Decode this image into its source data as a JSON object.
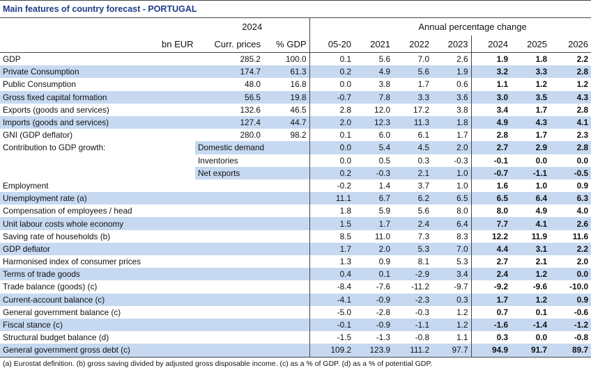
{
  "title": "Main features of country forecast - PORTUGAL",
  "header": {
    "year": "2024",
    "annual_change": "Annual percentage change",
    "col_bn_eur": "bn EUR",
    "col_curr_prices": "Curr. prices",
    "col_pct_gdp": "% GDP",
    "years": [
      "05-20",
      "2021",
      "2022",
      "2023",
      "2024",
      "2025",
      "2026"
    ]
  },
  "rows": [
    {
      "label": "GDP",
      "sub": "",
      "curr": "285.2",
      "pct": "100.0",
      "v": [
        "0.1",
        "5.6",
        "7.0",
        "2.6",
        "1.9",
        "1.8",
        "2.2"
      ],
      "shaded": false
    },
    {
      "label": "Private Consumption",
      "sub": "",
      "curr": "174.7",
      "pct": "61.3",
      "v": [
        "0.2",
        "4.9",
        "5.6",
        "1.9",
        "3.2",
        "3.3",
        "2.8"
      ],
      "shaded": true
    },
    {
      "label": "Public Consumption",
      "sub": "",
      "curr": "48.0",
      "pct": "16.8",
      "v": [
        "0.0",
        "3.8",
        "1.7",
        "0.6",
        "1.1",
        "1.2",
        "1.2"
      ],
      "shaded": false
    },
    {
      "label": "Gross fixed capital formation",
      "sub": "",
      "curr": "56.5",
      "pct": "19.8",
      "v": [
        "-0.7",
        "7.8",
        "3.3",
        "3.6",
        "3.0",
        "3.5",
        "4.3"
      ],
      "shaded": true
    },
    {
      "label": "Exports (goods and services)",
      "sub": "",
      "curr": "132.6",
      "pct": "46.5",
      "v": [
        "2.8",
        "12.0",
        "17.2",
        "3.8",
        "3.4",
        "1.7",
        "2.8"
      ],
      "shaded": false
    },
    {
      "label": "Imports (goods and services)",
      "sub": "",
      "curr": "127.4",
      "pct": "44.7",
      "v": [
        "2.0",
        "12.3",
        "11.3",
        "1.8",
        "4.9",
        "4.3",
        "4.1"
      ],
      "shaded": true
    },
    {
      "label": "GNI (GDP deflator)",
      "sub": "",
      "curr": "280.0",
      "pct": "98.2",
      "v": [
        "0.1",
        "6.0",
        "6.1",
        "1.7",
        "2.8",
        "1.7",
        "2.3"
      ],
      "shaded": false
    },
    {
      "label": "Contribution to GDP growth:",
      "sub": "Domestic demand",
      "curr": "",
      "pct": "",
      "v": [
        "0.0",
        "5.4",
        "4.5",
        "2.0",
        "2.7",
        "2.9",
        "2.8"
      ],
      "shaded": true
    },
    {
      "label": "",
      "sub": "Inventories",
      "curr": "",
      "pct": "",
      "v": [
        "0.0",
        "0.5",
        "0.3",
        "-0.3",
        "-0.1",
        "0.0",
        "0.0"
      ],
      "shaded": false
    },
    {
      "label": "",
      "sub": "Net exports",
      "curr": "",
      "pct": "",
      "v": [
        "0.2",
        "-0.3",
        "2.1",
        "1.0",
        "-0.7",
        "-1.1",
        "-0.5"
      ],
      "shaded": true
    },
    {
      "label": "Employment",
      "sub": "",
      "curr": "",
      "pct": "",
      "v": [
        "-0.2",
        "1.4",
        "3.7",
        "1.0",
        "1.6",
        "1.0",
        "0.9"
      ],
      "shaded": false
    },
    {
      "label": "Unemployment rate (a)",
      "sub": "",
      "curr": "",
      "pct": "",
      "v": [
        "11.1",
        "6.7",
        "6.2",
        "6.5",
        "6.5",
        "6.4",
        "6.3"
      ],
      "shaded": true
    },
    {
      "label": "Compensation of employees / head",
      "sub": "",
      "curr": "",
      "pct": "",
      "v": [
        "1.8",
        "5.9",
        "5.6",
        "8.0",
        "8.0",
        "4.9",
        "4.0"
      ],
      "shaded": false
    },
    {
      "label": "Unit labour costs whole economy",
      "sub": "",
      "curr": "",
      "pct": "",
      "v": [
        "1.5",
        "1.7",
        "2.4",
        "6.4",
        "7.7",
        "4.1",
        "2.6"
      ],
      "shaded": true
    },
    {
      "label": "Saving rate of households (b)",
      "sub": "",
      "curr": "",
      "pct": "",
      "v": [
        "8.5",
        "11.0",
        "7.3",
        "8.3",
        "12.2",
        "11.9",
        "11.6"
      ],
      "shaded": false
    },
    {
      "label": "GDP deflator",
      "sub": "",
      "curr": "",
      "pct": "",
      "v": [
        "1.7",
        "2.0",
        "5.3",
        "7.0",
        "4.4",
        "3.1",
        "2.2"
      ],
      "shaded": true
    },
    {
      "label": "Harmonised index of consumer prices",
      "sub": "",
      "curr": "",
      "pct": "",
      "v": [
        "1.3",
        "0.9",
        "8.1",
        "5.3",
        "2.7",
        "2.1",
        "2.0"
      ],
      "shaded": false
    },
    {
      "label": "Terms of trade goods",
      "sub": "",
      "curr": "",
      "pct": "",
      "v": [
        "0.4",
        "0.1",
        "-2.9",
        "3.4",
        "2.4",
        "1.2",
        "0.0"
      ],
      "shaded": true
    },
    {
      "label": "Trade balance (goods) (c)",
      "sub": "",
      "curr": "",
      "pct": "",
      "v": [
        "-8.4",
        "-7.6",
        "-11.2",
        "-9.7",
        "-9.2",
        "-9.6",
        "-10.0"
      ],
      "shaded": false
    },
    {
      "label": "Current-account balance (c)",
      "sub": "",
      "curr": "",
      "pct": "",
      "v": [
        "-4.1",
        "-0.9",
        "-2.3",
        "0.3",
        "1.7",
        "1.2",
        "0.9"
      ],
      "shaded": true
    },
    {
      "label": "General government balance (c)",
      "sub": "",
      "curr": "",
      "pct": "",
      "v": [
        "-5.0",
        "-2.8",
        "-0.3",
        "1.2",
        "0.7",
        "0.1",
        "-0.6"
      ],
      "shaded": false
    },
    {
      "label": "Fiscal stance (c)",
      "sub": "",
      "curr": "",
      "pct": "",
      "v": [
        "-0.1",
        "-0.9",
        "-1.1",
        "1.2",
        "-1.6",
        "-1.4",
        "-1.2"
      ],
      "shaded": true
    },
    {
      "label": "Structural budget balance (d)",
      "sub": "",
      "curr": "",
      "pct": "",
      "v": [
        "-1.5",
        "-1.3",
        "-0.8",
        "1.1",
        "0.3",
        "0.0",
        "-0.8"
      ],
      "shaded": false
    },
    {
      "label": "General government gross debt (c)",
      "sub": "",
      "curr": "",
      "pct": "",
      "v": [
        "109.2",
        "123.9",
        "111.2",
        "97.7",
        "94.9",
        "91.7",
        "89.7"
      ],
      "shaded": true
    }
  ],
  "footnote": "(a) Eurostat definition.  (b) gross saving divided by adjusted gross disposable income.  (c) as a % of GDP.  (d) as a % of potential GDP."
}
